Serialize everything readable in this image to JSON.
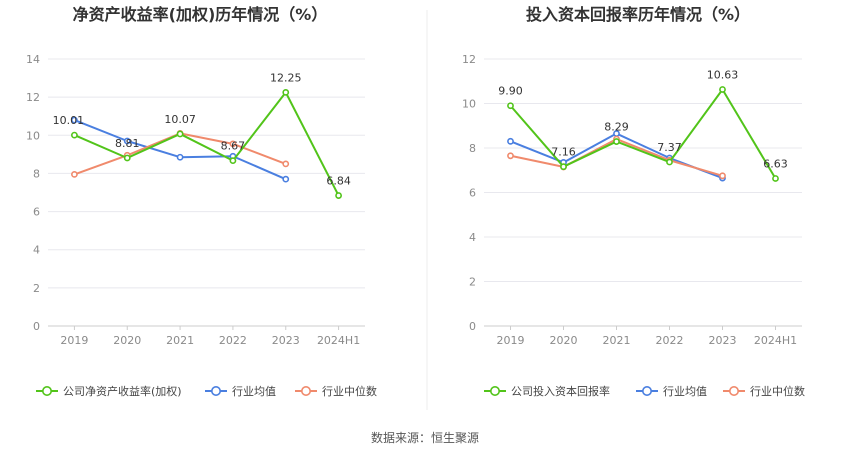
{
  "source_text": "数据来源：恒生聚源",
  "chart_data": [
    {
      "type": "line",
      "title": "净资产收益率(加权)历年情况（%）",
      "categories": [
        "2019",
        "2020",
        "2021",
        "2022",
        "2023",
        "2024H1"
      ],
      "ylim": [
        0,
        14
      ],
      "yticks": [
        0,
        2,
        4,
        6,
        8,
        10,
        12,
        14
      ],
      "grid": true,
      "legend_position": "bottom",
      "series": [
        {
          "name": "公司净资产收益率(加权)",
          "color": "#52c41a",
          "values": [
            10.01,
            8.81,
            10.07,
            8.67,
            12.25,
            6.84
          ],
          "labels": [
            "10.01",
            "8.81",
            "10.07",
            "8.67",
            "12.25",
            "6.84"
          ]
        },
        {
          "name": "行业均值",
          "color": "#4a7fe0",
          "values": [
            10.8,
            9.7,
            8.85,
            8.9,
            7.7,
            null
          ]
        },
        {
          "name": "行业中位数",
          "color": "#f08a6c",
          "values": [
            7.95,
            8.95,
            10.1,
            9.55,
            8.5,
            null
          ]
        }
      ]
    },
    {
      "type": "line",
      "title": "投入资本回报率历年情况（%）",
      "categories": [
        "2019",
        "2020",
        "2021",
        "2022",
        "2023",
        "2024H1"
      ],
      "ylim": [
        0,
        12
      ],
      "yticks": [
        0,
        2,
        4,
        6,
        8,
        10,
        12
      ],
      "grid": true,
      "legend_position": "bottom",
      "series": [
        {
          "name": "公司投入资本回报率",
          "color": "#52c41a",
          "values": [
            9.9,
            7.16,
            8.29,
            7.37,
            10.63,
            6.63
          ],
          "labels": [
            "9.90",
            "7.16",
            "8.29",
            "7.37",
            "10.63",
            "6.63"
          ]
        },
        {
          "name": "行业均值",
          "color": "#4a7fe0",
          "values": [
            8.3,
            7.35,
            8.65,
            7.55,
            6.65,
            null
          ]
        },
        {
          "name": "行业中位数",
          "color": "#f08a6c",
          "values": [
            7.65,
            7.15,
            8.4,
            7.45,
            6.75,
            null
          ]
        }
      ]
    }
  ]
}
